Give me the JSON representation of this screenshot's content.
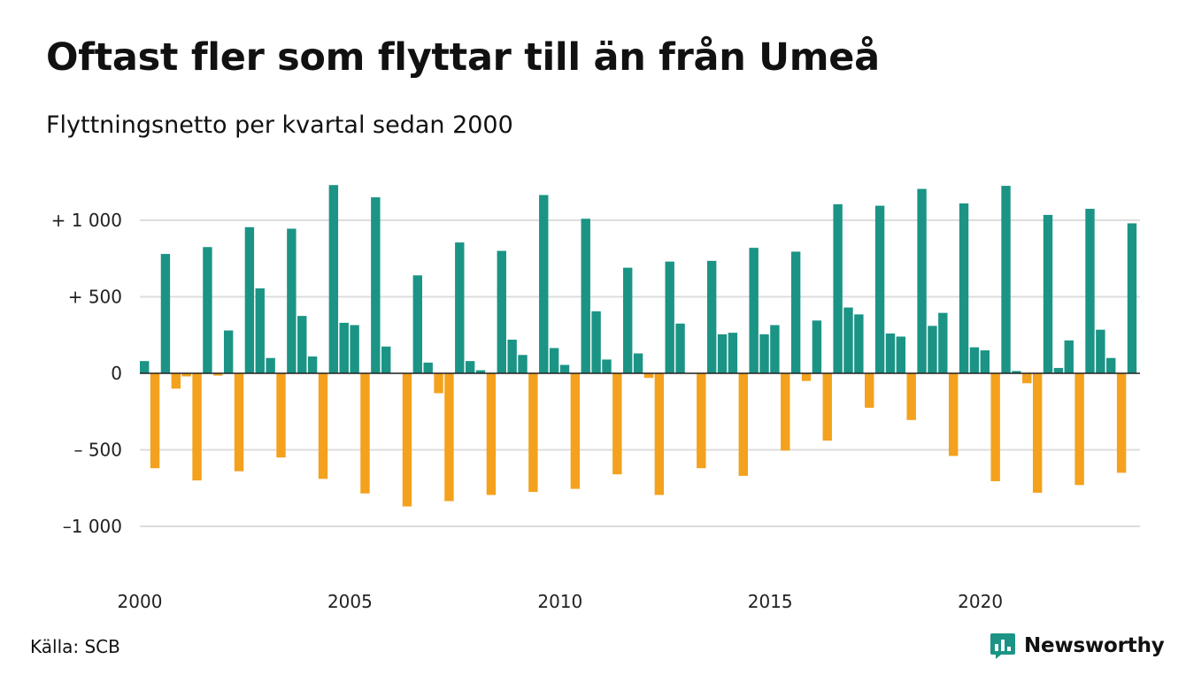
{
  "header": {
    "title": "Oftast fler som flyttar till än från Umeå",
    "subtitle": "Flyttningsnetto per kvartal sedan 2000"
  },
  "footer": {
    "source": "Källa: SCB",
    "brand": "Newsworthy"
  },
  "colors": {
    "positive": "#1b9485",
    "negative": "#f4a11d",
    "grid": "#dddddd",
    "brand": "#1b9485"
  },
  "icons": {
    "logo": "bar-chart-speech-bubble-icon"
  },
  "chart_data": {
    "type": "bar",
    "title": "Oftast fler som flyttar till än från Umeå",
    "subtitle": "Flyttningsnetto per kvartal sedan 2000",
    "xlabel": "",
    "ylabel": "",
    "x_start": "2000-Q1",
    "ylim": [
      -1200,
      1250
    ],
    "y_ticks": [
      1000,
      500,
      0,
      -500,
      -1000
    ],
    "y_tick_labels": [
      "+ 1 000",
      "+   500",
      "0",
      "–  500",
      "–1 000"
    ],
    "x_tick_years": [
      2000,
      2005,
      2010,
      2015,
      2020
    ],
    "x_tick_labels": [
      "2000",
      "2005",
      "2010",
      "2015",
      "2020"
    ],
    "grid": true,
    "legend": "none",
    "values": [
      80,
      -620,
      780,
      -100,
      -20,
      -700,
      825,
      -15,
      280,
      -640,
      955,
      555,
      100,
      -550,
      945,
      375,
      110,
      -690,
      1230,
      330,
      315,
      -785,
      1150,
      175,
      0,
      -870,
      640,
      70,
      -130,
      -835,
      855,
      80,
      20,
      -795,
      800,
      220,
      120,
      -775,
      1165,
      165,
      55,
      -755,
      1010,
      405,
      90,
      -660,
      690,
      130,
      -30,
      -795,
      730,
      325,
      0,
      -620,
      735,
      255,
      265,
      -670,
      820,
      255,
      315,
      -505,
      795,
      -50,
      345,
      -440,
      1105,
      430,
      385,
      -225,
      1095,
      260,
      240,
      -305,
      1205,
      310,
      395,
      -540,
      1110,
      170,
      150,
      -705,
      1225,
      15,
      -65,
      -780,
      1035,
      35,
      215,
      -730,
      1075,
      285,
      100,
      -650,
      980
    ]
  }
}
